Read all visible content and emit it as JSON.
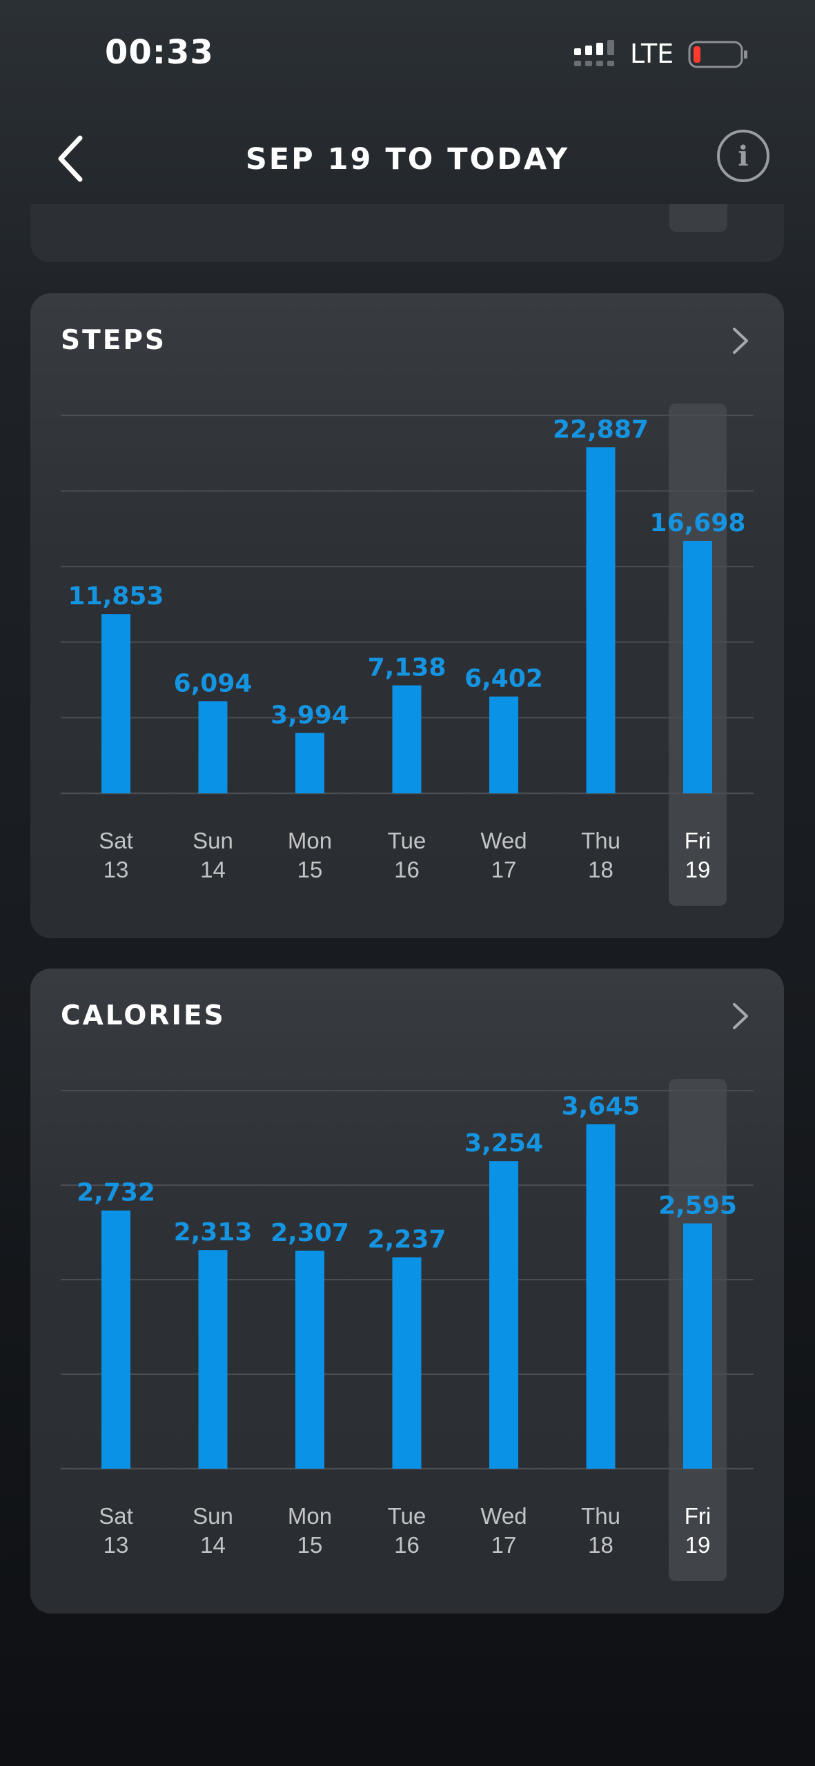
{
  "status_bar": {
    "time": "00:33",
    "network": "LTE",
    "signal_icon": "signal-bars-icon",
    "battery_icon": "battery-low-icon",
    "battery_color": "#ff3b30"
  },
  "header": {
    "title": "SEP 19 TO TODAY",
    "back_icon": "chevron-left-icon",
    "info_icon": "info-icon",
    "info_glyph": "i"
  },
  "colors": {
    "bar": "#0a93e6",
    "value_label": "#1594e2",
    "day_label": "#c2c4c6",
    "selected_day_label": "#ffffff",
    "gridline": "#4a4e53",
    "selected_highlight": "#4a4e52"
  },
  "cards": [
    {
      "title": "STEPS",
      "chevron_icon": "chevron-right-icon",
      "chart_data": {
        "type": "bar",
        "categories": [
          {
            "day": "Sat",
            "date": "13"
          },
          {
            "day": "Sun",
            "date": "14"
          },
          {
            "day": "Mon",
            "date": "15"
          },
          {
            "day": "Tue",
            "date": "16"
          },
          {
            "day": "Wed",
            "date": "17"
          },
          {
            "day": "Thu",
            "date": "18"
          },
          {
            "day": "Fri",
            "date": "19"
          }
        ],
        "values": [
          11853,
          6094,
          3994,
          7138,
          6402,
          22887,
          16698
        ],
        "value_labels": [
          "11,853",
          "6,094",
          "3,994",
          "7,138",
          "6,402",
          "22,887",
          "16,698"
        ],
        "ylim": [
          0,
          25000
        ],
        "gridlines": 5,
        "selected_index": 6,
        "grid": true
      }
    },
    {
      "title": "CALORIES",
      "chevron_icon": "chevron-right-icon",
      "chart_data": {
        "type": "bar",
        "categories": [
          {
            "day": "Sat",
            "date": "13"
          },
          {
            "day": "Sun",
            "date": "14"
          },
          {
            "day": "Mon",
            "date": "15"
          },
          {
            "day": "Tue",
            "date": "16"
          },
          {
            "day": "Wed",
            "date": "17"
          },
          {
            "day": "Thu",
            "date": "18"
          },
          {
            "day": "Fri",
            "date": "19"
          }
        ],
        "values": [
          2732,
          2313,
          2307,
          2237,
          3254,
          3645,
          2595
        ],
        "value_labels": [
          "2,732",
          "2,313",
          "2,307",
          "2,237",
          "3,254",
          "3,645",
          "2,595"
        ],
        "ylim": [
          0,
          4000
        ],
        "gridlines": 4,
        "selected_index": 6,
        "grid": true
      }
    }
  ]
}
